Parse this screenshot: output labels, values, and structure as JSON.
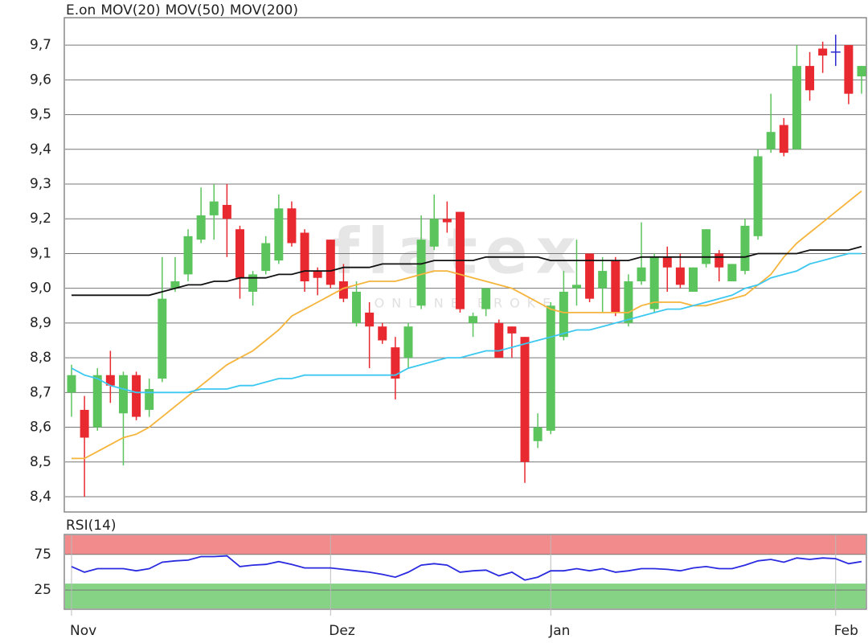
{
  "chart_data": [
    {
      "type": "candlestick",
      "name": "E.on",
      "color": "#ff4d1a",
      "up_color": "#5cc45c",
      "down_color": "#e8292f",
      "doji_color": "#2a2ad0",
      "watermark": [
        "flatex",
        "ONLINE BROKER"
      ],
      "categories": [
        "Nov",
        null,
        null,
        null,
        null,
        null,
        null,
        null,
        null,
        null,
        null,
        null,
        null,
        null,
        null,
        null,
        null,
        null,
        null,
        null,
        "Dez",
        null,
        null,
        null,
        null,
        null,
        null,
        null,
        null,
        null,
        null,
        null,
        null,
        null,
        null,
        null,
        null,
        "Jan",
        null,
        null,
        null,
        null,
        null,
        null,
        null,
        null,
        null,
        null,
        null,
        null,
        null,
        null,
        null,
        null,
        null,
        null,
        null,
        null,
        null,
        "Feb",
        null,
        null
      ],
      "open": [
        8.7,
        8.65,
        8.6,
        8.75,
        8.64,
        8.75,
        8.65,
        8.74,
        9.0,
        9.04,
        9.14,
        9.21,
        9.24,
        9.17,
        8.99,
        9.05,
        9.08,
        9.23,
        9.16,
        9.05,
        9.14,
        9.02,
        8.9,
        8.93,
        8.89,
        8.83,
        8.8,
        8.95,
        9.12,
        9.2,
        9.22,
        8.9,
        8.94,
        8.9,
        8.89,
        8.86,
        8.56,
        8.59,
        8.86,
        9.0,
        9.1,
        9.0,
        9.08,
        8.9,
        9.02,
        8.94,
        9.09,
        9.06,
        8.99,
        9.07,
        9.1,
        9.02,
        9.05,
        9.15,
        9.4,
        9.47,
        9.4,
        9.64,
        9.69,
        9.68,
        9.7,
        9.61
      ],
      "high": [
        8.78,
        8.69,
        8.77,
        8.82,
        8.76,
        8.76,
        8.74,
        9.09,
        9.09,
        9.17,
        9.29,
        9.3,
        9.3,
        9.18,
        9.05,
        9.15,
        9.27,
        9.25,
        9.17,
        9.06,
        9.14,
        9.07,
        9.02,
        8.96,
        8.9,
        8.86,
        8.9,
        9.21,
        9.27,
        9.25,
        9.22,
        8.93,
        9.0,
        8.91,
        8.89,
        8.86,
        8.64,
        8.96,
        9.05,
        9.14,
        9.1,
        9.09,
        9.09,
        9.04,
        9.19,
        9.1,
        9.12,
        9.1,
        9.06,
        9.17,
        9.11,
        9.07,
        9.2,
        9.4,
        9.56,
        9.49,
        9.7,
        9.68,
        9.71,
        9.73,
        9.7,
        9.64
      ],
      "low": [
        8.63,
        8.4,
        8.59,
        8.67,
        8.49,
        8.62,
        8.63,
        8.73,
        8.99,
        9.02,
        9.13,
        9.14,
        9.09,
        8.97,
        8.95,
        9.04,
        9.07,
        9.12,
        8.99,
        8.98,
        9.0,
        8.96,
        8.89,
        8.77,
        8.84,
        8.68,
        8.77,
        8.94,
        9.11,
        9.16,
        8.93,
        8.86,
        8.92,
        8.8,
        8.8,
        8.44,
        8.54,
        8.58,
        8.85,
        8.95,
        8.96,
        8.93,
        8.92,
        8.89,
        9.01,
        8.93,
        8.99,
        9.0,
        8.99,
        9.06,
        9.02,
        9.02,
        9.04,
        9.14,
        9.39,
        9.38,
        9.4,
        9.54,
        9.62,
        9.64,
        9.53,
        9.56
      ],
      "close": [
        8.75,
        8.57,
        8.75,
        8.72,
        8.75,
        8.63,
        8.71,
        8.97,
        9.02,
        9.15,
        9.21,
        9.25,
        9.2,
        9.03,
        9.04,
        9.13,
        9.23,
        9.13,
        9.02,
        9.03,
        9.01,
        8.97,
        8.99,
        8.89,
        8.85,
        8.74,
        8.89,
        9.14,
        9.2,
        9.19,
        8.94,
        8.92,
        9.0,
        8.8,
        8.87,
        8.5,
        8.6,
        8.95,
        8.99,
        9.01,
        8.97,
        9.05,
        8.93,
        9.02,
        9.06,
        9.09,
        9.06,
        9.01,
        9.06,
        9.17,
        9.06,
        9.07,
        9.18,
        9.38,
        9.45,
        9.39,
        9.64,
        9.57,
        9.67,
        9.68,
        9.56,
        9.64
      ],
      "series": [
        {
          "name": "MOV(20)",
          "color": "#f5b43c",
          "values": [
            8.51,
            8.51,
            8.53,
            8.55,
            8.57,
            8.58,
            8.6,
            8.63,
            8.66,
            8.69,
            8.72,
            8.75,
            8.78,
            8.8,
            8.82,
            8.85,
            8.88,
            8.92,
            8.94,
            8.96,
            8.98,
            9.0,
            9.01,
            9.02,
            9.02,
            9.02,
            9.03,
            9.04,
            9.05,
            9.05,
            9.04,
            9.03,
            9.02,
            9.01,
            9.0,
            8.98,
            8.96,
            8.94,
            8.93,
            8.93,
            8.93,
            8.93,
            8.93,
            8.93,
            8.95,
            8.96,
            8.96,
            8.96,
            8.95,
            8.95,
            8.96,
            8.97,
            8.98,
            9.01,
            9.04,
            9.09,
            9.13,
            9.16,
            9.19,
            9.22,
            9.25,
            9.28
          ]
        },
        {
          "name": "MOV(50)",
          "color": "#3cc8f0",
          "values": [
            8.77,
            8.75,
            8.74,
            8.72,
            8.71,
            8.7,
            8.7,
            8.7,
            8.7,
            8.7,
            8.71,
            8.71,
            8.71,
            8.72,
            8.72,
            8.73,
            8.74,
            8.74,
            8.75,
            8.75,
            8.75,
            8.75,
            8.75,
            8.75,
            8.75,
            8.75,
            8.77,
            8.78,
            8.79,
            8.8,
            8.8,
            8.81,
            8.82,
            8.82,
            8.83,
            8.84,
            8.85,
            8.86,
            8.87,
            8.88,
            8.88,
            8.89,
            8.9,
            8.91,
            8.92,
            8.93,
            8.94,
            8.94,
            8.95,
            8.96,
            8.97,
            8.98,
            9.0,
            9.01,
            9.03,
            9.04,
            9.05,
            9.07,
            9.08,
            9.09,
            9.1,
            9.1
          ]
        },
        {
          "name": "MOV(200)",
          "color": "#111111",
          "values": [
            8.98,
            8.98,
            8.98,
            8.98,
            8.98,
            8.98,
            8.98,
            8.99,
            9.0,
            9.01,
            9.01,
            9.02,
            9.02,
            9.03,
            9.03,
            9.03,
            9.04,
            9.04,
            9.05,
            9.05,
            9.05,
            9.06,
            9.06,
            9.06,
            9.07,
            9.07,
            9.07,
            9.07,
            9.08,
            9.08,
            9.08,
            9.08,
            9.09,
            9.09,
            9.09,
            9.09,
            9.09,
            9.08,
            9.08,
            9.08,
            9.08,
            9.08,
            9.08,
            9.08,
            9.09,
            9.09,
            9.09,
            9.09,
            9.09,
            9.09,
            9.09,
            9.09,
            9.09,
            9.1,
            9.1,
            9.1,
            9.1,
            9.11,
            9.11,
            9.11,
            9.11,
            9.12
          ]
        }
      ],
      "ylim": [
        8.356,
        9.779
      ],
      "yticks": [
        {
          "value": 8.4,
          "label": "8,4"
        },
        {
          "value": 8.5,
          "label": "8,5"
        },
        {
          "value": 8.6,
          "label": "8,6"
        },
        {
          "value": 8.7,
          "label": "8,7"
        },
        {
          "value": 8.8,
          "label": "8,8"
        },
        {
          "value": 8.9,
          "label": "8,9"
        },
        {
          "value": 9.0,
          "label": "9,0"
        },
        {
          "value": 9.1,
          "label": "9,1"
        },
        {
          "value": 9.2,
          "label": "9,2"
        },
        {
          "value": 9.3,
          "label": "9,3"
        },
        {
          "value": 9.4,
          "label": "9,4"
        },
        {
          "value": 9.5,
          "label": "9,5"
        },
        {
          "value": 9.6,
          "label": "9,6"
        },
        {
          "value": 9.7,
          "label": "9,7"
        }
      ],
      "grid": true
    },
    {
      "type": "line",
      "title": "RSI(14)",
      "title_color": "#1a1ad0",
      "series": [
        {
          "name": "RSI(14)",
          "color": "#2a2ae0",
          "values": [
            58,
            50,
            55,
            55,
            55,
            52,
            55,
            64,
            66,
            67,
            72,
            72,
            73,
            58,
            60,
            61,
            65,
            61,
            56,
            56,
            56,
            54,
            52,
            50,
            47,
            43,
            50,
            60,
            62,
            60,
            50,
            52,
            53,
            45,
            50,
            39,
            43,
            52,
            52,
            55,
            52,
            55,
            50,
            52,
            55,
            55,
            54,
            52,
            56,
            58,
            55,
            55,
            60,
            66,
            68,
            64,
            70,
            68,
            70,
            69,
            62,
            65
          ]
        }
      ],
      "ylim": [
        -2,
        103
      ],
      "yticks": [
        25,
        75
      ],
      "grid": true
    }
  ]
}
